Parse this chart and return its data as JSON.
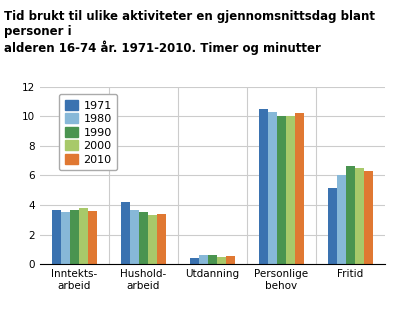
{
  "title": "Tid brukt til ulike aktiviteter en gjennomsnittsdag blant personer i\nalderen 16-74 år. 1971-2010. Timer og minutter",
  "categories": [
    "Inntekts-\narbeid",
    "Hushold-\narbeid",
    "Utdanning",
    "Personlige\nbehov",
    "Fritid"
  ],
  "years": [
    "1971",
    "1980",
    "1990",
    "2000",
    "2010"
  ],
  "values": {
    "1971": [
      3.67,
      4.17,
      0.38,
      10.5,
      5.17
    ],
    "1980": [
      3.5,
      3.67,
      0.6,
      10.28,
      6.0
    ],
    "1990": [
      3.67,
      3.5,
      0.6,
      10.0,
      6.67
    ],
    "2000": [
      3.83,
      3.33,
      0.5,
      10.0,
      6.5
    ],
    "2010": [
      3.6,
      3.42,
      0.52,
      10.25,
      6.33
    ]
  },
  "colors": {
    "1971": "#3a72b0",
    "1980": "#87b8d8",
    "1990": "#4a9450",
    "2000": "#a8c96a",
    "2010": "#e07832"
  },
  "ylim": [
    0,
    12
  ],
  "yticks": [
    0,
    2,
    4,
    6,
    8,
    10,
    12
  ],
  "background_color": "#ffffff",
  "grid_color": "#cccccc",
  "title_fontsize": 8.5,
  "tick_fontsize": 7.5,
  "legend_fontsize": 8
}
